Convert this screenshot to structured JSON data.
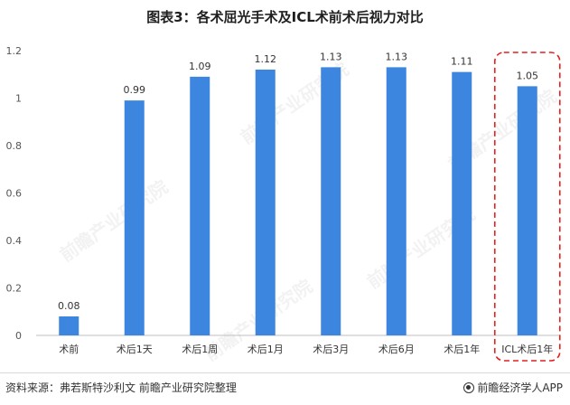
{
  "title": "图表3：各术屈光手术及ICL术前术后视力对比",
  "source": "资料来源：弗若斯特沙利文 前瞻产业研究院整理",
  "logo": "前瞻经济学人APP",
  "watermark": "前瞻产业研究院",
  "colors": {
    "bar": "#3d86e0",
    "highlight": "#e02020",
    "grid": "#d9d9d9"
  },
  "chart_data": {
    "type": "bar",
    "categories": [
      "术前",
      "术后1天",
      "术后1周",
      "术后1月",
      "术后3月",
      "术后6月",
      "术后1年",
      "ICL术后1年"
    ],
    "values": [
      0.08,
      0.99,
      1.09,
      1.12,
      1.13,
      1.13,
      1.11,
      1.05
    ],
    "data_labels": [
      "0.08",
      "0.99",
      "1.09",
      "1.12",
      "1.13",
      "1.13",
      "1.11",
      "1.05"
    ],
    "y_ticks": [
      "0",
      "0.2",
      "0.4",
      "0.6",
      "0.8",
      "1",
      "1.2"
    ],
    "ylim": [
      0,
      1.2
    ],
    "grid": false,
    "highlighted_category": "ICL术后1年"
  }
}
